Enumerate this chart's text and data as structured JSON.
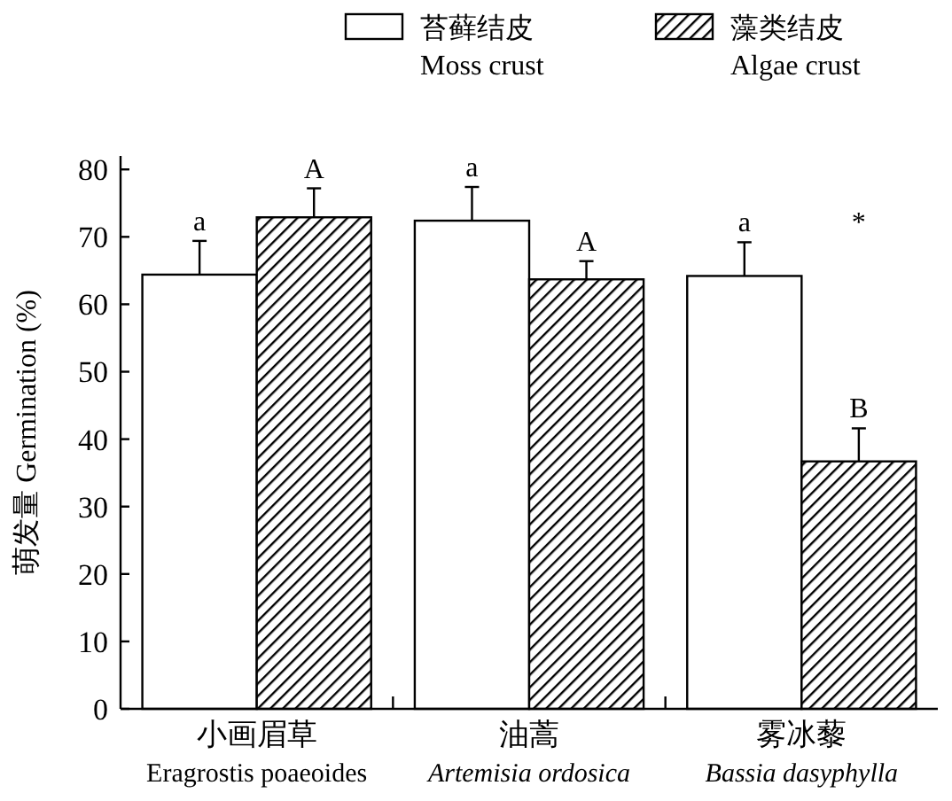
{
  "chart_data": {
    "type": "bar",
    "ylabel": "萌发量 Germination (%)",
    "categories": [
      "小画眉草\nEragrostis poaeoides",
      "油蒿\nArtemisia ordosica",
      "雾冰藜\nBassia dasyphylla"
    ],
    "series": [
      {
        "name": "苔藓结皮\nMoss crust",
        "color": "#ffffff",
        "values": [
          64.4,
          72.4,
          64.2
        ],
        "errors": [
          5,
          5,
          5
        ]
      },
      {
        "name": "藻类结皮\nAlgae crust",
        "color": "#000000",
        "values": [
          72.9,
          63.7,
          36.7
        ],
        "errors": [
          4.3,
          2.7,
          4.9
        ]
      }
    ],
    "annotations": [
      "a",
      "A",
      "a",
      "A",
      "a",
      "B",
      "*"
    ],
    "ylim": [
      0,
      82
    ],
    "yticks": [
      0,
      10,
      20,
      30,
      40,
      50,
      60,
      70,
      80
    ],
    "legend": "top",
    "grid": false
  }
}
